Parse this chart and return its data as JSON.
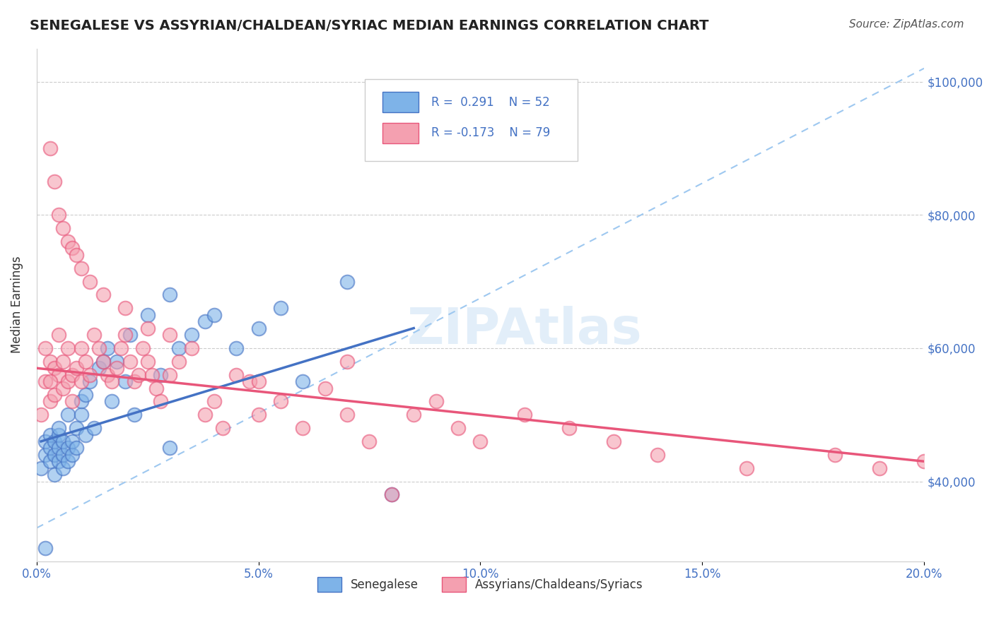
{
  "title": "SENEGALESE VS ASSYRIAN/CHALDEAN/SYRIAC MEDIAN EARNINGS CORRELATION CHART",
  "source": "Source: ZipAtlas.com",
  "xlabel": "",
  "ylabel": "Median Earnings",
  "legend_label_blue": "Senegalese",
  "legend_label_pink": "Assyrians/Chaldeans/Syriacs",
  "R_blue": 0.291,
  "N_blue": 52,
  "R_pink": -0.173,
  "N_pink": 79,
  "xmin": 0.0,
  "xmax": 0.2,
  "ymin": 28000,
  "ymax": 105000,
  "yticks": [
    40000,
    60000,
    80000,
    100000
  ],
  "xticks": [
    0.0,
    0.05,
    0.1,
    0.15,
    0.2
  ],
  "color_blue": "#7EB3E8",
  "color_pink": "#F4A0B0",
  "color_blue_line": "#4472C4",
  "color_pink_line": "#E8567A",
  "color_dashed": "#9EC8F0",
  "watermark": "ZIPAtlas",
  "blue_scatter_x": [
    0.001,
    0.002,
    0.002,
    0.003,
    0.003,
    0.003,
    0.004,
    0.004,
    0.004,
    0.005,
    0.005,
    0.005,
    0.005,
    0.006,
    0.006,
    0.006,
    0.007,
    0.007,
    0.007,
    0.008,
    0.008,
    0.009,
    0.009,
    0.01,
    0.01,
    0.011,
    0.011,
    0.012,
    0.013,
    0.014,
    0.015,
    0.016,
    0.017,
    0.018,
    0.02,
    0.021,
    0.022,
    0.025,
    0.028,
    0.03,
    0.032,
    0.035,
    0.038,
    0.04,
    0.045,
    0.05,
    0.055,
    0.06,
    0.07,
    0.08,
    0.03,
    0.002
  ],
  "blue_scatter_y": [
    42000,
    44000,
    46000,
    43000,
    45000,
    47000,
    41000,
    44000,
    46000,
    43000,
    45000,
    47000,
    48000,
    42000,
    44000,
    46000,
    43000,
    45000,
    50000,
    44000,
    46000,
    45000,
    48000,
    50000,
    52000,
    47000,
    53000,
    55000,
    48000,
    57000,
    58000,
    60000,
    52000,
    58000,
    55000,
    62000,
    50000,
    65000,
    56000,
    68000,
    60000,
    62000,
    64000,
    65000,
    60000,
    63000,
    66000,
    55000,
    70000,
    38000,
    45000,
    30000
  ],
  "pink_scatter_x": [
    0.001,
    0.002,
    0.002,
    0.003,
    0.003,
    0.004,
    0.004,
    0.005,
    0.005,
    0.006,
    0.006,
    0.007,
    0.007,
    0.008,
    0.008,
    0.009,
    0.01,
    0.01,
    0.011,
    0.012,
    0.013,
    0.014,
    0.015,
    0.016,
    0.017,
    0.018,
    0.019,
    0.02,
    0.021,
    0.022,
    0.023,
    0.024,
    0.025,
    0.026,
    0.027,
    0.028,
    0.03,
    0.032,
    0.035,
    0.038,
    0.04,
    0.042,
    0.045,
    0.048,
    0.05,
    0.055,
    0.06,
    0.065,
    0.07,
    0.075,
    0.08,
    0.085,
    0.09,
    0.095,
    0.1,
    0.11,
    0.12,
    0.13,
    0.14,
    0.16,
    0.003,
    0.004,
    0.005,
    0.006,
    0.007,
    0.008,
    0.009,
    0.01,
    0.012,
    0.015,
    0.02,
    0.025,
    0.03,
    0.05,
    0.07,
    0.18,
    0.19,
    0.2,
    0.003
  ],
  "pink_scatter_y": [
    50000,
    55000,
    60000,
    58000,
    52000,
    57000,
    53000,
    56000,
    62000,
    54000,
    58000,
    55000,
    60000,
    56000,
    52000,
    57000,
    55000,
    60000,
    58000,
    56000,
    62000,
    60000,
    58000,
    56000,
    55000,
    57000,
    60000,
    62000,
    58000,
    55000,
    56000,
    60000,
    58000,
    56000,
    54000,
    52000,
    56000,
    58000,
    60000,
    50000,
    52000,
    48000,
    56000,
    55000,
    50000,
    52000,
    48000,
    54000,
    50000,
    46000,
    38000,
    50000,
    52000,
    48000,
    46000,
    50000,
    48000,
    46000,
    44000,
    42000,
    90000,
    85000,
    80000,
    78000,
    76000,
    75000,
    74000,
    72000,
    70000,
    68000,
    66000,
    63000,
    62000,
    55000,
    58000,
    44000,
    42000,
    43000,
    55000
  ]
}
